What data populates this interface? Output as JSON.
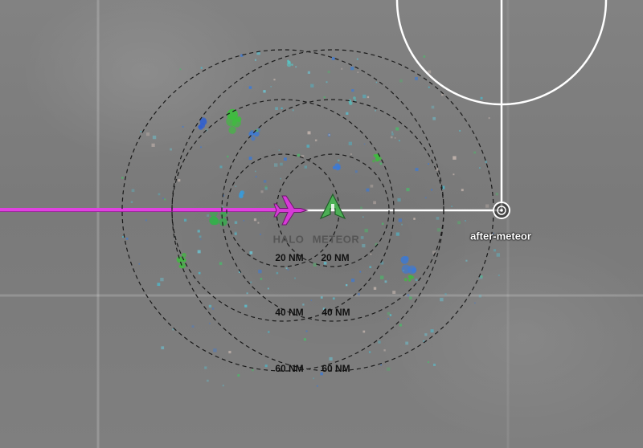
{
  "aircraft": [
    {
      "id": "halo",
      "label": "HALO",
      "color": "#cc33cc"
    },
    {
      "id": "meteor",
      "label": "METEOR",
      "color": "#2e8b3e"
    }
  ],
  "waypoint": {
    "label": "after-meteor"
  },
  "range_rings": {
    "halo": [
      "20 NM",
      "40 NM",
      "60 NM"
    ],
    "meteor": [
      "20 NM",
      "40 NM",
      "60 NM"
    ]
  },
  "colors": {
    "halo_track": "#e040e0",
    "meteor_track": "#ffffff",
    "route": "#ffffff",
    "ring": "#1a1a1a"
  }
}
